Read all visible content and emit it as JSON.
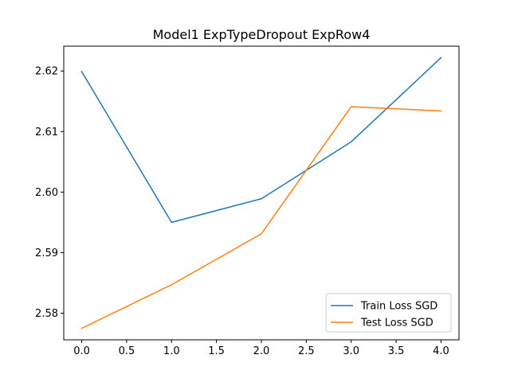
{
  "chart_data": {
    "type": "line",
    "title": "Model1 ExpTypeDropout ExpRow4",
    "xlabel": "",
    "ylabel": "",
    "x": [
      0,
      1,
      2,
      3,
      4
    ],
    "xlim": [
      -0.2,
      4.2
    ],
    "ylim": [
      2.5756,
      2.6241
    ],
    "xticks": [
      0.0,
      0.5,
      1.0,
      1.5,
      2.0,
      2.5,
      3.0,
      3.5,
      4.0
    ],
    "xtick_labels": [
      "0.0",
      "0.5",
      "1.0",
      "1.5",
      "2.0",
      "2.5",
      "3.0",
      "3.5",
      "4.0"
    ],
    "yticks": [
      2.58,
      2.59,
      2.6,
      2.61,
      2.62
    ],
    "ytick_labels": [
      "2.58",
      "2.59",
      "2.60",
      "2.61",
      "2.62"
    ],
    "grid": false,
    "legend_position": "lower-right",
    "series": [
      {
        "name": "Train Loss SGD",
        "color": "#1f77b4",
        "values": [
          2.6199,
          2.595,
          2.5989,
          2.6083,
          2.6222
        ]
      },
      {
        "name": "Test Loss SGD",
        "color": "#ff7f0e",
        "values": [
          2.5775,
          2.5847,
          2.5931,
          2.6141,
          2.6134
        ]
      }
    ]
  }
}
